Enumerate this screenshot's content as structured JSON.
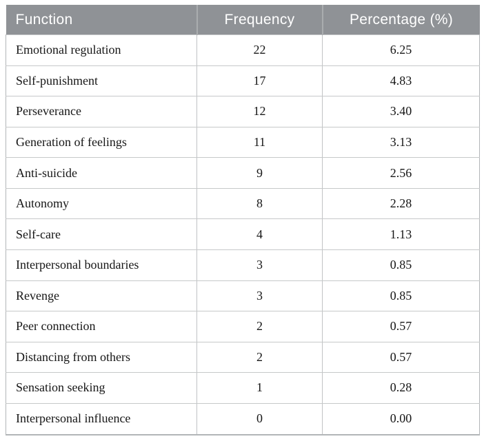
{
  "table": {
    "header": {
      "function": "Function",
      "frequency": "Frequency",
      "percentage": "Percentage (%)"
    },
    "rows": [
      {
        "function": "Emotional regulation",
        "frequency": "22",
        "percentage": "6.25"
      },
      {
        "function": "Self-punishment",
        "frequency": "17",
        "percentage": "4.83"
      },
      {
        "function": "Perseverance",
        "frequency": "12",
        "percentage": "3.40"
      },
      {
        "function": "Generation of feelings",
        "frequency": "11",
        "percentage": "3.13"
      },
      {
        "function": "Anti-suicide",
        "frequency": "9",
        "percentage": "2.56"
      },
      {
        "function": "Autonomy",
        "frequency": "8",
        "percentage": "2.28"
      },
      {
        "function": "Self-care",
        "frequency": "4",
        "percentage": "1.13"
      },
      {
        "function": "Interpersonal boundaries",
        "frequency": "3",
        "percentage": "0.85"
      },
      {
        "function": "Revenge",
        "frequency": "3",
        "percentage": "0.85"
      },
      {
        "function": "Peer connection",
        "frequency": "2",
        "percentage": "0.57"
      },
      {
        "function": "Distancing from others",
        "frequency": "2",
        "percentage": "0.57"
      },
      {
        "function": "Sensation seeking",
        "frequency": "1",
        "percentage": "0.28"
      },
      {
        "function": "Interpersonal influence",
        "frequency": "0",
        "percentage": "0.00"
      }
    ],
    "colors": {
      "header_bg": "#8f9296",
      "header_text": "#ffffff",
      "header_divider": "#aaadaf",
      "grid_line": "#c6c8c9",
      "grid_line_v": "#c0c2c4",
      "outer_border": "#b2b5b7",
      "body_text": "#161616"
    }
  },
  "chart_data": {
    "type": "table",
    "columns": [
      "Function",
      "Frequency",
      "Percentage (%)"
    ],
    "rows": [
      [
        "Emotional regulation",
        22,
        6.25
      ],
      [
        "Self-punishment",
        17,
        4.83
      ],
      [
        "Perseverance",
        12,
        3.4
      ],
      [
        "Generation of feelings",
        11,
        3.13
      ],
      [
        "Anti-suicide",
        9,
        2.56
      ],
      [
        "Autonomy",
        8,
        2.28
      ],
      [
        "Self-care",
        4,
        1.13
      ],
      [
        "Interpersonal boundaries",
        3,
        0.85
      ],
      [
        "Revenge",
        3,
        0.85
      ],
      [
        "Peer connection",
        2,
        0.57
      ],
      [
        "Distancing from others",
        2,
        0.57
      ],
      [
        "Sensation seeking",
        1,
        0.28
      ],
      [
        "Interpersonal influence",
        0,
        0.0
      ]
    ]
  }
}
